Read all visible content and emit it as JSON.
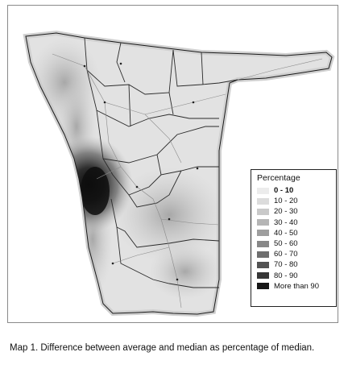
{
  "map": {
    "legend": {
      "title": "Percentage",
      "items": [
        {
          "label": "0 - 10",
          "color": "#ececec"
        },
        {
          "label": "10 - 20",
          "color": "#dcdcdc"
        },
        {
          "label": "20 - 30",
          "color": "#c9c9c9"
        },
        {
          "label": "30 - 40",
          "color": "#b5b5b5"
        },
        {
          "label": "40 - 50",
          "color": "#9e9e9e"
        },
        {
          "label": "50 - 60",
          "color": "#878787"
        },
        {
          "label": "60 - 70",
          "color": "#6e6e6e"
        },
        {
          "label": "70 - 80",
          "color": "#525252"
        },
        {
          "label": "80 - 90",
          "color": "#363636"
        },
        {
          "label": "More than 90",
          "color": "#161616"
        }
      ]
    }
  },
  "caption": {
    "text": "Map 1.  Difference between average and median as percentage of median."
  }
}
